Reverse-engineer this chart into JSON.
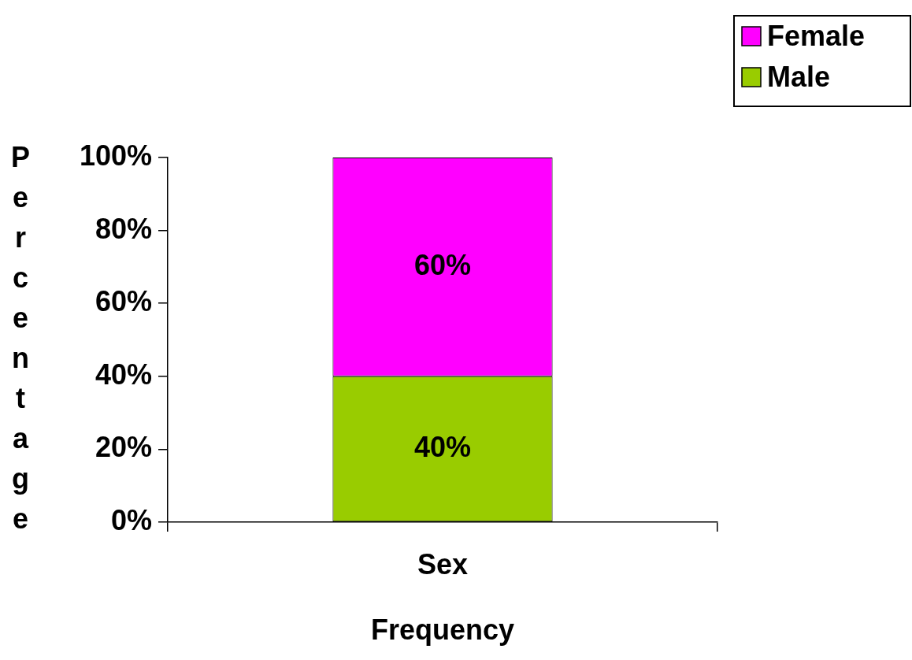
{
  "chart_data": {
    "type": "bar",
    "stacked": true,
    "categories": [
      "Sex"
    ],
    "xlabel": "Frequency",
    "ylabel": "Percentage",
    "series": [
      {
        "name": "Male",
        "color": "#99cc00",
        "values": [
          40
        ],
        "value_labels": [
          "40%"
        ]
      },
      {
        "name": "Female",
        "color": "#ff00ff",
        "values": [
          60
        ],
        "value_labels": [
          "60%"
        ]
      }
    ],
    "ylim": [
      0,
      100
    ],
    "yticks": [
      {
        "value": 0,
        "label": "0%"
      },
      {
        "value": 20,
        "label": "20%"
      },
      {
        "value": 40,
        "label": "40%"
      },
      {
        "value": 60,
        "label": "60%"
      },
      {
        "value": 80,
        "label": "80%"
      },
      {
        "value": 100,
        "label": "100%"
      }
    ],
    "grid": false,
    "legend": "top right"
  }
}
